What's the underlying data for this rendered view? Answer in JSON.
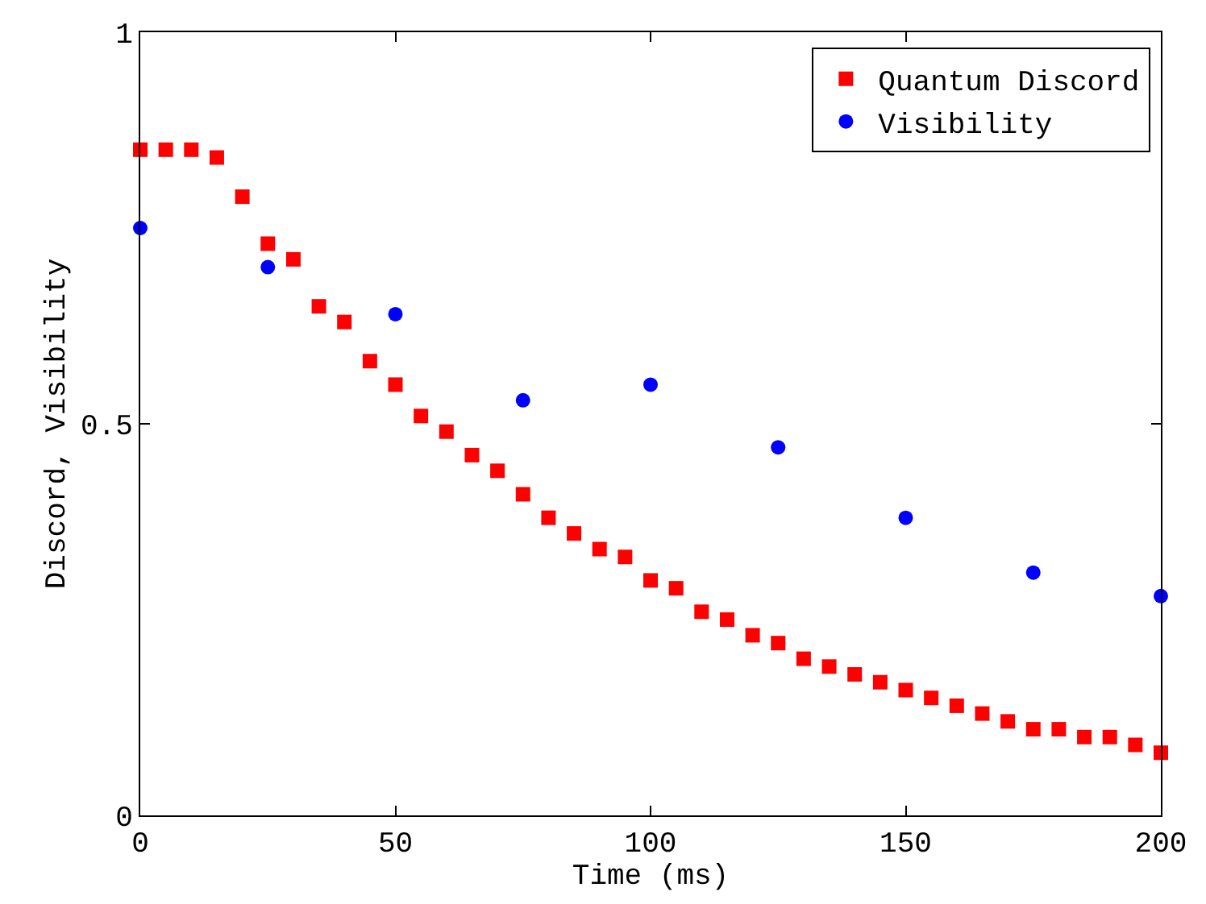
{
  "chart_data": {
    "type": "scatter",
    "xlabel": "Time (ms)",
    "ylabel": "Discord, Visibility",
    "xlim": [
      0,
      200
    ],
    "xticks": [
      0,
      50,
      100,
      150,
      200
    ],
    "ylim": [
      0,
      1
    ],
    "yticks": [
      0,
      0.5,
      1
    ],
    "legend": "top right",
    "series": [
      {
        "name": "Quantum Discord",
        "color": "#ff0000",
        "marker": "square",
        "x": [
          0,
          5,
          10,
          15,
          20,
          25,
          30,
          35,
          40,
          45,
          50,
          55,
          60,
          65,
          70,
          75,
          80,
          85,
          90,
          95,
          100,
          105,
          110,
          115,
          120,
          125,
          130,
          135,
          140,
          145,
          150,
          155,
          160,
          165,
          170,
          175,
          180,
          185,
          190,
          195,
          200
        ],
        "values": [
          0.85,
          0.85,
          0.85,
          0.84,
          0.79,
          0.73,
          0.71,
          0.65,
          0.63,
          0.58,
          0.55,
          0.51,
          0.49,
          0.46,
          0.44,
          0.41,
          0.38,
          0.36,
          0.34,
          0.33,
          0.3,
          0.29,
          0.26,
          0.25,
          0.23,
          0.22,
          0.2,
          0.19,
          0.18,
          0.17,
          0.16,
          0.15,
          0.14,
          0.13,
          0.12,
          0.11,
          0.11,
          0.1,
          0.1,
          0.09,
          0.08
        ]
      },
      {
        "name": "Visibility",
        "color": "#0000ff",
        "marker": "circle",
        "x": [
          0,
          25,
          50,
          75,
          100,
          125,
          150,
          175,
          200
        ],
        "values": [
          0.75,
          0.7,
          0.64,
          0.53,
          0.55,
          0.47,
          0.38,
          0.31,
          0.28
        ]
      }
    ]
  }
}
